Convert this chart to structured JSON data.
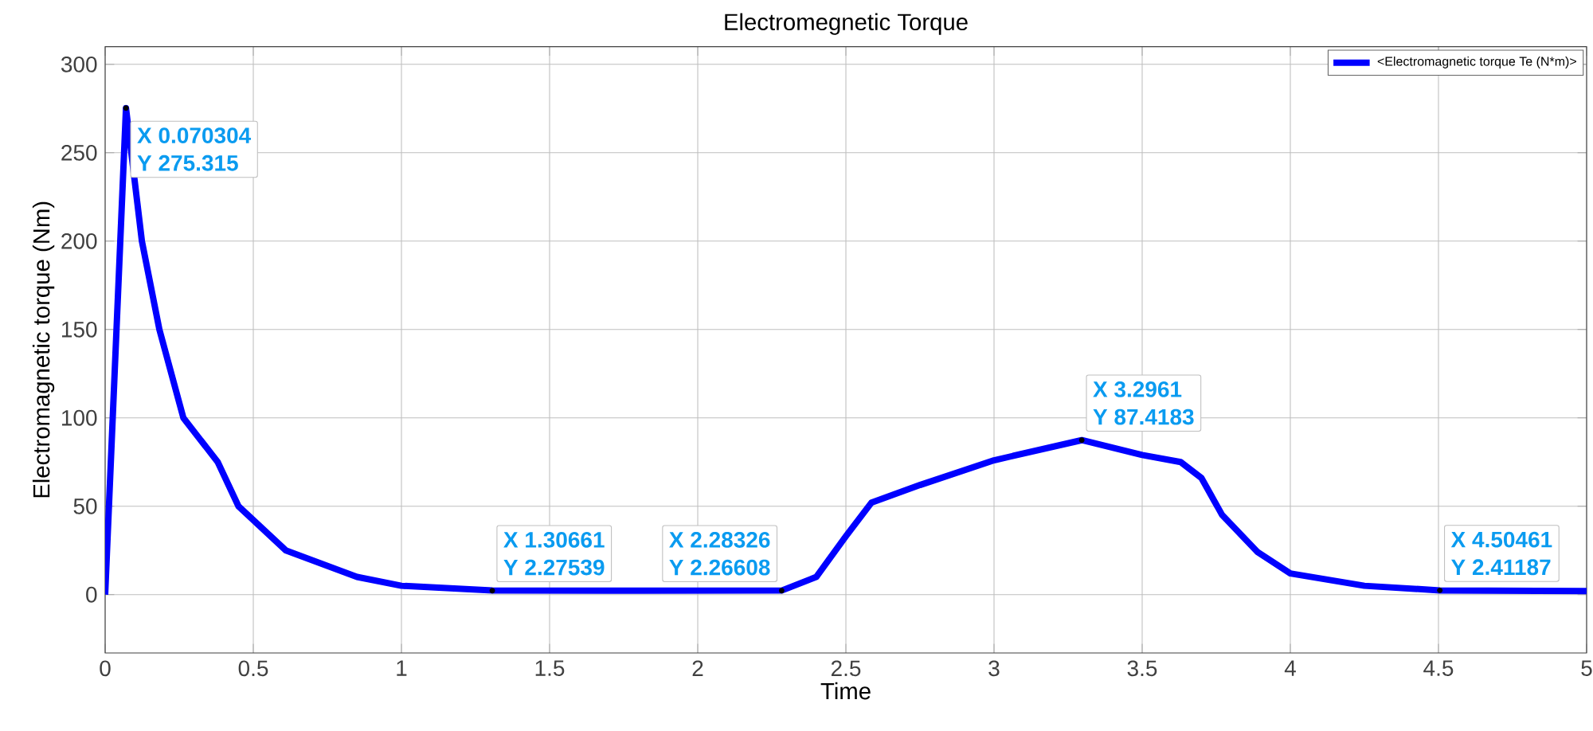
{
  "chart_data": {
    "type": "line",
    "title": "Electromegnetic Torque",
    "xlabel": "Time",
    "ylabel": "Electromagnetic torque (Nm)",
    "x": [
      0,
      0.0703,
      0.124,
      0.183,
      0.264,
      0.38,
      0.45,
      0.61,
      0.85,
      1.0,
      1.30661,
      1.8,
      2.28326,
      2.4,
      2.5,
      2.586,
      2.75,
      3.0,
      3.2961,
      3.5,
      3.63,
      3.7,
      3.77,
      3.89,
      4.0,
      4.25,
      4.50461,
      5.0
    ],
    "series": [
      {
        "name": "<Electromagnetic torque Te (N*m)>",
        "color": "#0000ff",
        "values": [
          0,
          275.3,
          200,
          150,
          100,
          75,
          50,
          25,
          10,
          5,
          2.3,
          2.2,
          2.3,
          10,
          33,
          52,
          62,
          76,
          87.4,
          79,
          75,
          66,
          45,
          24,
          12,
          5,
          2.4,
          2
        ]
      }
    ],
    "xlim": [
      0,
      5
    ],
    "ylim": [
      -33,
      310
    ],
    "xticks": [
      0,
      0.5,
      1,
      1.5,
      2,
      2.5,
      3,
      3.5,
      4,
      4.5,
      5
    ],
    "yticks": [
      0,
      50,
      100,
      150,
      200,
      250,
      300
    ],
    "grid": true,
    "legend": "top right",
    "marker": "none",
    "line_style": "solid",
    "annotations": [
      {
        "text": "X 0.070304",
        "x": 0.070304,
        "y": 275.315
      },
      {
        "text": "Y 275.315",
        "x": 0.070304,
        "y": 275.315
      },
      {
        "text": "X 1.30661",
        "x": 1.30661,
        "y": 2.27539
      },
      {
        "text": "Y 2.27539",
        "x": 1.30661,
        "y": 2.27539
      },
      {
        "text": "X 2.28326",
        "x": 2.28326,
        "y": 2.26608
      },
      {
        "text": "Y 2.26608",
        "x": 2.28326,
        "y": 2.26608
      },
      {
        "text": "X 3.2961",
        "x": 3.2961,
        "y": 87.4183
      },
      {
        "text": "Y 87.4183",
        "x": 3.2961,
        "y": 87.4183
      },
      {
        "text": "X 4.50461",
        "x": 4.50461,
        "y": 2.41187
      },
      {
        "text": "Y 2.41187",
        "x": 4.50461,
        "y": 2.41187
      }
    ]
  }
}
